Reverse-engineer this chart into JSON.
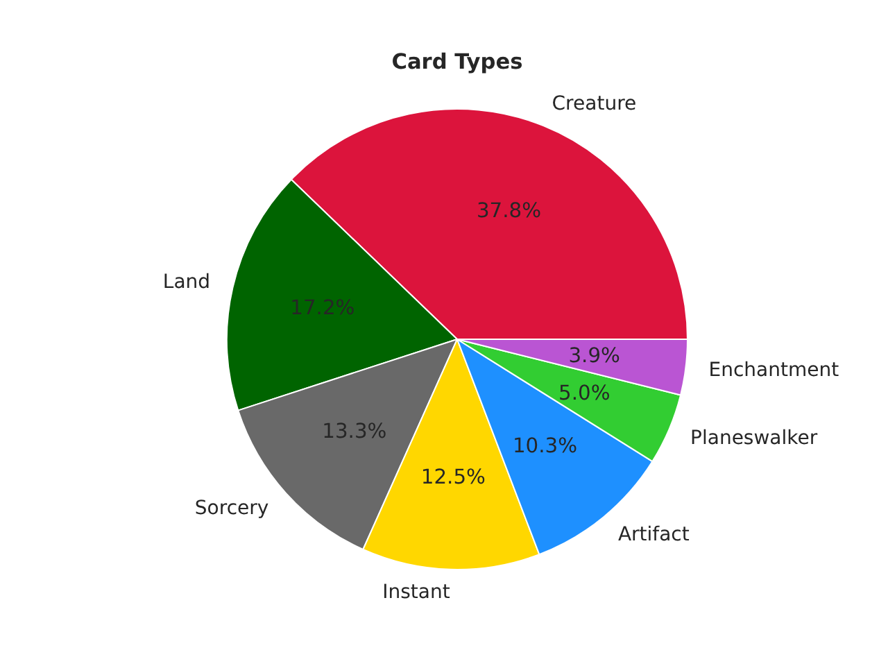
{
  "chart_data": {
    "type": "pie",
    "title": "Card Types",
    "categories": [
      "Creature",
      "Land",
      "Sorcery",
      "Instant",
      "Artifact",
      "Planeswalker",
      "Enchantment"
    ],
    "values": [
      37.8,
      17.2,
      13.3,
      12.5,
      10.3,
      5.0,
      3.9
    ],
    "value_labels": [
      "37.8%",
      "17.2%",
      "13.3%",
      "12.5%",
      "10.3%",
      "5.0%",
      "3.9%"
    ],
    "colors": [
      "#dc143c",
      "#006400",
      "#696969",
      "#ffd700",
      "#1e90ff",
      "#32cd32",
      "#ba55d3"
    ]
  }
}
